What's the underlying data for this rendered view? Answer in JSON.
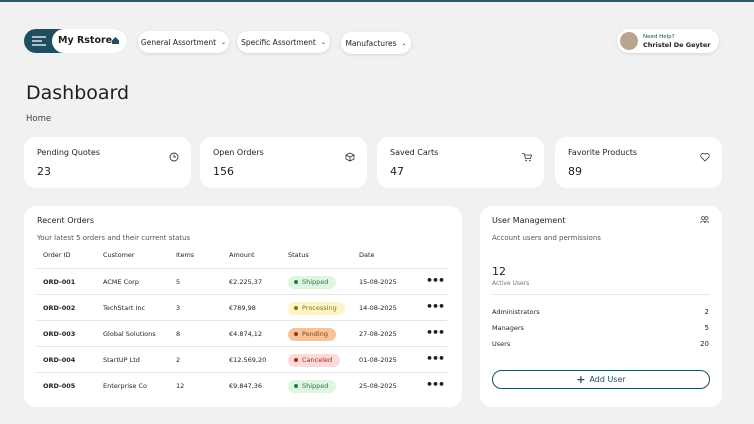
{
  "nav": {
    "brand": "My Rstore",
    "menus": [
      "General Assortment",
      "Specific Assortment",
      "Manufactures"
    ],
    "help": "Need Help?",
    "user": "Christel De Geyter"
  },
  "page": {
    "title": "Dashboard",
    "breadcrumb": "Home"
  },
  "stats": [
    {
      "label": "Pending Quotes",
      "value": 23
    },
    {
      "label": "Open Orders",
      "value": 156
    },
    {
      "label": "Saved Carts",
      "value": 47
    },
    {
      "label": "Favorite Products",
      "value": 89
    }
  ],
  "orders": {
    "title": "Recent Orders",
    "subtitle": "Your latest 5 orders and their current status",
    "columns": [
      "Order ID",
      "Customer",
      "Items",
      "Amount",
      "Status",
      "Date"
    ],
    "rows": [
      [
        "ORD-001",
        "ACME Corp",
        5,
        "€2.225,37",
        "Shipped",
        "15-08-2025"
      ],
      [
        "ORD-002",
        "TechStart Inc",
        3,
        "€789,98",
        "Processing",
        "14-08-2025"
      ],
      [
        "ORD-003",
        "Global Solutions",
        8,
        "€4.874,12",
        "Pending",
        "27-08-2025"
      ],
      [
        "ORD-004",
        "StartUP Ltd",
        2,
        "€12.569,20",
        "Canceled",
        "01-08-2025"
      ],
      [
        "ORD-005",
        "Enterprise Co",
        12,
        "€9.847,36",
        "Shipped",
        "25-08-2025"
      ]
    ]
  },
  "users": {
    "title": "User Management",
    "subtitle": "Account users and permissions",
    "active": 12,
    "active_label": "Active Users",
    "roles": [
      {
        "name": "Administrators",
        "count": 2
      },
      {
        "name": "Managers",
        "count": 5
      },
      {
        "name": "Users",
        "count": 20
      }
    ],
    "button": "Add User"
  }
}
